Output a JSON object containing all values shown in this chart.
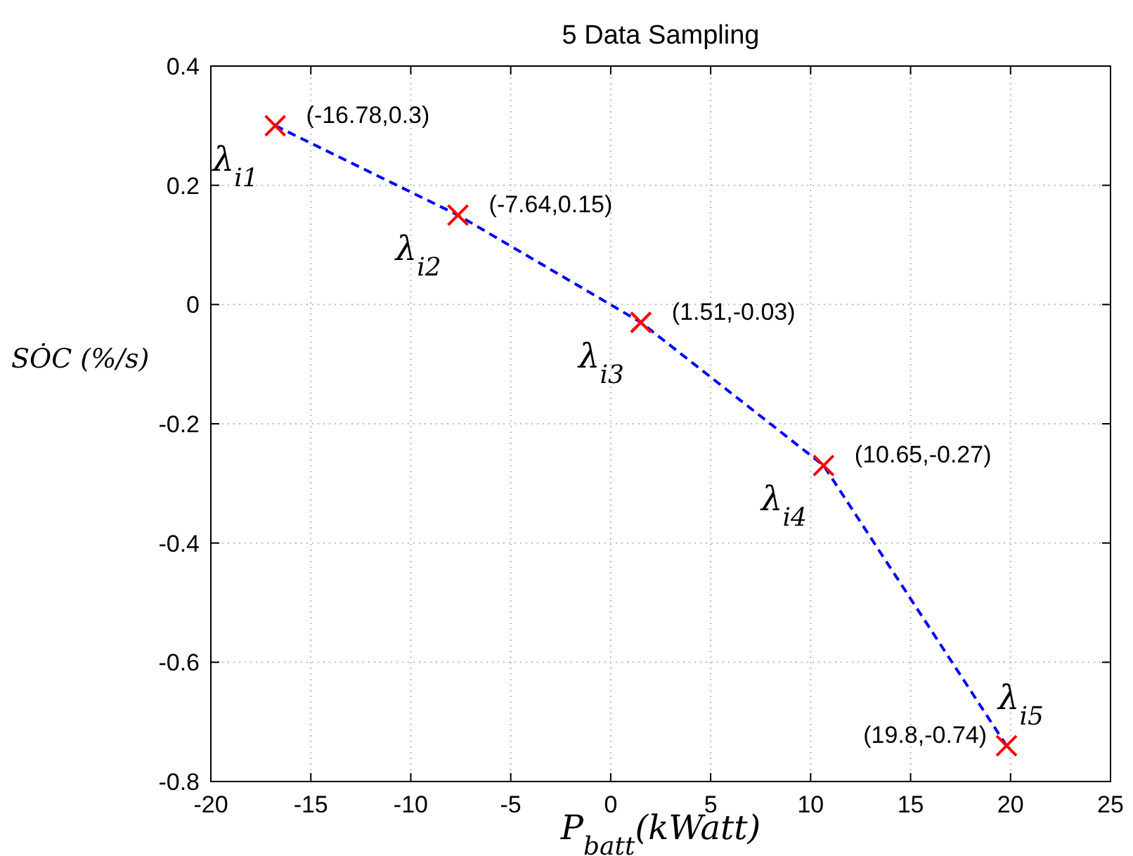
{
  "chart_data": {
    "type": "line",
    "title": "5 Data Sampling",
    "xlabel": "P$_{batt}$(kWatt)",
    "ylabel": "SȮC (%/s)",
    "x": [
      -16.78,
      -7.64,
      1.51,
      10.65,
      19.8
    ],
    "series": [
      {
        "color": "#0000ff",
        "line_style": "dashed",
        "marker": "none",
        "values": [
          0.3,
          0.15,
          -0.03,
          -0.27,
          -0.74
        ]
      },
      {
        "type": "scatter",
        "color": "#ff0000",
        "marker": "cross",
        "values": [
          0.3,
          0.15,
          -0.03,
          -0.27,
          -0.74
        ]
      }
    ],
    "xlim": [
      -20,
      25
    ],
    "xticks": [
      -20,
      -15,
      -10,
      -5,
      0,
      5,
      10,
      15,
      20,
      25
    ],
    "ylim": [
      -0.8,
      0.4
    ],
    "yticks": [
      -0.8,
      -0.6,
      -0.4,
      -0.2,
      0,
      0.2,
      0.4
    ],
    "grid": true,
    "annotations": [
      {
        "text": "(-16.78,0.3)",
        "x": -16.78,
        "y": 0.3
      },
      {
        "text": "(-7.64,0.15)",
        "x": -7.64,
        "y": 0.15
      },
      {
        "text": "(1.51,-0.03)",
        "x": 1.51,
        "y": -0.03
      },
      {
        "text": "(10.65,-0.27)",
        "x": 10.65,
        "y": -0.27
      },
      {
        "text": "(19.8,-0.74)",
        "x": 19.8,
        "y": -0.74
      },
      {
        "text": "λ$_{i1}$",
        "x": -16.78,
        "y": 0.3
      },
      {
        "text": "λ$_{i2}$",
        "x": -7.64,
        "y": 0.15
      },
      {
        "text": "λ$_{i3}$",
        "x": 1.51,
        "y": -0.03
      },
      {
        "text": "λ$_{i4}$",
        "x": 10.65,
        "y": -0.27
      },
      {
        "text": "λ$_{i5}$",
        "x": 19.8,
        "y": -0.74
      }
    ]
  }
}
